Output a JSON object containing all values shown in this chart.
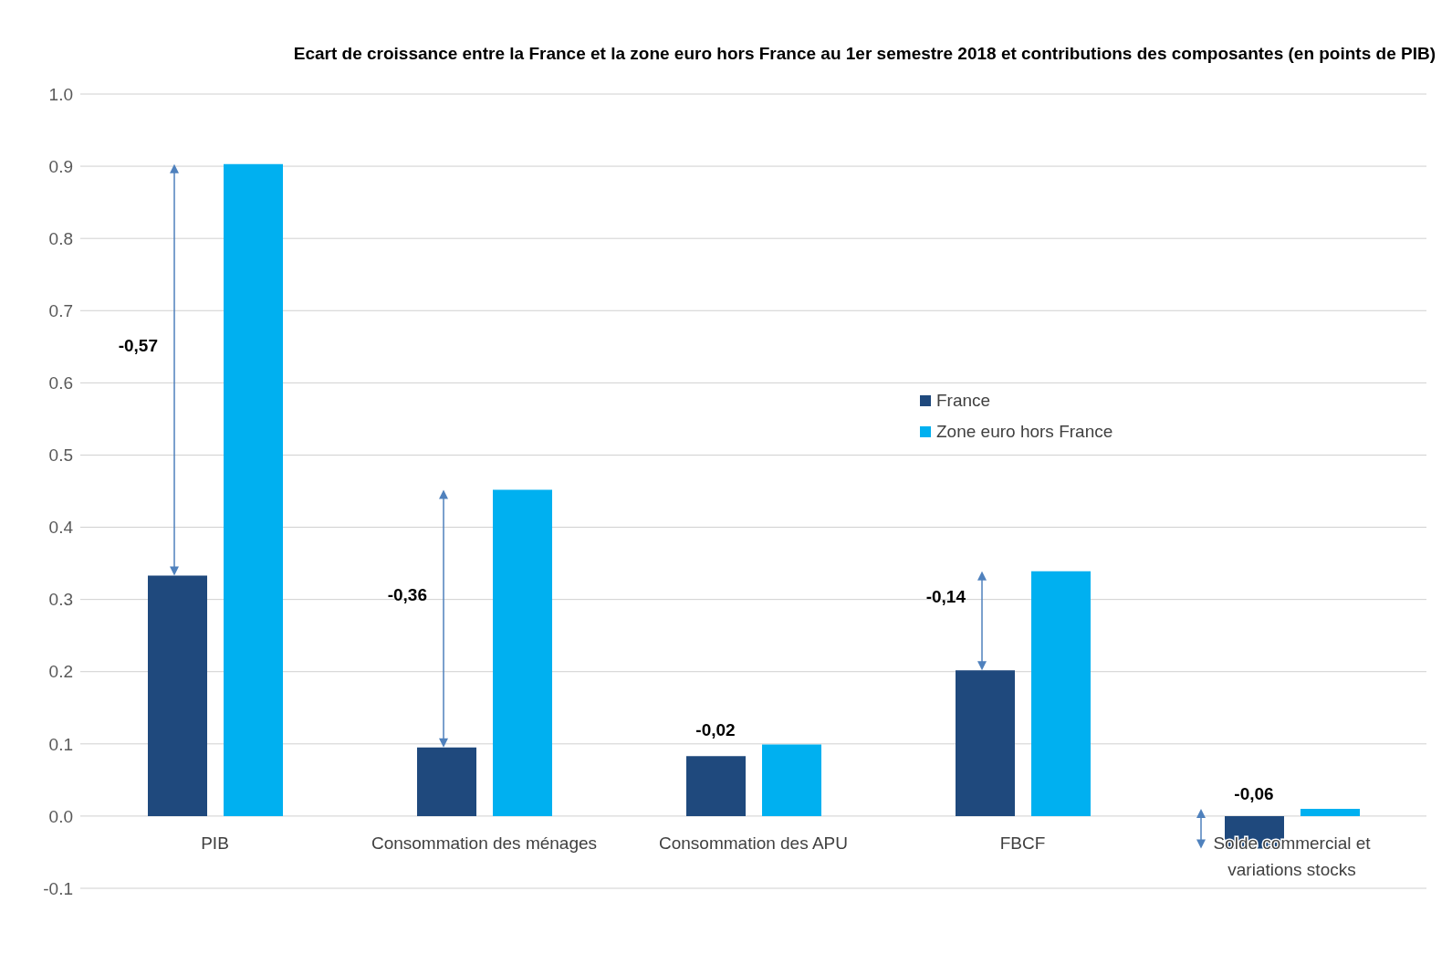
{
  "chart_data": {
    "type": "bar",
    "title": "Ecart de croissance entre la France et la zone euro hors France au 1er semestre 2018 et contributions des composantes (en points de PIB)",
    "categories": [
      "PIB",
      "Consommation des ménages",
      "Consommation des APU",
      "FBCF",
      "Solde commercial et variations stocks"
    ],
    "series": [
      {
        "name": "France",
        "color": "#1f497d",
        "values": [
          0.333,
          0.095,
          0.083,
          0.202,
          -0.045
        ]
      },
      {
        "name": "Zone euro hors France",
        "color": "#00b0f0",
        "values": [
          0.903,
          0.452,
          0.099,
          0.339,
          0.01
        ]
      }
    ],
    "ylim": [
      -0.1,
      1.0
    ],
    "yticks": [
      {
        "value": -0.1,
        "label": "-0.1"
      },
      {
        "value": 0,
        "label": "0.0"
      },
      {
        "value": 0.1,
        "label": "0.1"
      },
      {
        "value": 0.2,
        "label": "0.2"
      },
      {
        "value": 0.3,
        "label": "0.3"
      },
      {
        "value": 0.4,
        "label": "0.4"
      },
      {
        "value": 0.5,
        "label": "0.5"
      },
      {
        "value": 0.6,
        "label": "0.6"
      },
      {
        "value": 0.7,
        "label": "0.7"
      },
      {
        "value": 0.8,
        "label": "0.8"
      },
      {
        "value": 0.9,
        "label": "0.9"
      },
      {
        "value": 1.0,
        "label": "1.0"
      }
    ],
    "grid": "y",
    "legend": "right",
    "annotations": [
      "-0,57",
      "-0,36",
      "-0,02",
      "-0,14",
      "-0,06"
    ]
  }
}
